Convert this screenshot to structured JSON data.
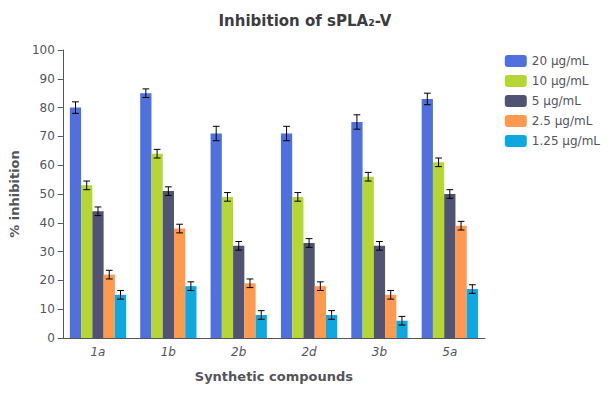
{
  "chart_data": {
    "type": "bar",
    "title": "Inhibition of sPLA₂-V",
    "xlabel": "Synthetic compounds",
    "ylabel": "% inhibition",
    "categories": [
      "1a",
      "1b",
      "2b",
      "2d",
      "3b",
      "5a"
    ],
    "series": [
      {
        "name": "20 μg/mL",
        "values": [
          80,
          85,
          71,
          71,
          75,
          83
        ],
        "errors": [
          2.0,
          1.5,
          2.5,
          2.5,
          2.5,
          2.0
        ]
      },
      {
        "name": "10 μg/mL",
        "values": [
          53,
          64,
          49,
          49,
          56,
          61
        ],
        "errors": [
          1.5,
          1.5,
          1.5,
          1.5,
          1.5,
          1.5
        ]
      },
      {
        "name": "5 μg/mL",
        "values": [
          44,
          51,
          32,
          33,
          32,
          50
        ],
        "errors": [
          1.5,
          1.5,
          1.5,
          1.5,
          1.5,
          1.5
        ]
      },
      {
        "name": "2.5 μg/mL",
        "values": [
          22,
          38,
          19,
          18,
          15,
          39
        ],
        "errors": [
          1.5,
          1.5,
          1.5,
          1.5,
          1.5,
          1.5
        ]
      },
      {
        "name": "1.25 μg/mL",
        "values": [
          15,
          18,
          8,
          8,
          6,
          17
        ],
        "errors": [
          1.5,
          1.5,
          1.5,
          1.5,
          1.5,
          1.5
        ]
      }
    ],
    "ylim": [
      0,
      100
    ],
    "yticks": [
      0,
      10,
      20,
      30,
      40,
      50,
      60,
      70,
      80,
      90,
      100
    ],
    "grid": false,
    "legend": "upper right"
  }
}
